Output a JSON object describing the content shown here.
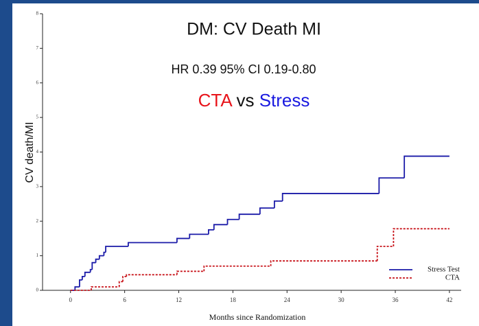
{
  "chart_data": {
    "type": "step",
    "title": "DM: CV Death MI",
    "subtitle": "HR 0.39 95% CI 0.19-0.80",
    "comparison": [
      {
        "text": "CTA",
        "color": "#e8141b"
      },
      {
        "text": "vs",
        "color": "#111111"
      },
      {
        "text": "Stress",
        "color": "#1a1ae0"
      }
    ],
    "x_label": "Months since Randomization",
    "y_label": "CV death/MI",
    "xlim": [
      -3.1,
      43.3
    ],
    "ylim": [
      0,
      8
    ],
    "xticks": [
      0,
      6,
      12,
      18,
      24,
      30,
      36,
      42
    ],
    "yticks": [
      0,
      1,
      2,
      3,
      4,
      5,
      6,
      7,
      8
    ],
    "legend": "lower right",
    "series": [
      {
        "name": "Stress Test",
        "color": "#1a1aa8",
        "dashed": false,
        "x": [
          0,
          0.5,
          1,
          1.3,
          1.6,
          2.2,
          2.4,
          2.8,
          3.2,
          3.7,
          3.9,
          6.4,
          11.8,
          13.2,
          15.3,
          15.9,
          17.4,
          18.7,
          21.0,
          22.6,
          23.5,
          34.2,
          37,
          42
        ],
        "values": [
          0,
          0.1,
          0.3,
          0.4,
          0.52,
          0.6,
          0.8,
          0.9,
          1.0,
          1.1,
          1.27,
          1.38,
          1.5,
          1.62,
          1.75,
          1.9,
          2.05,
          2.2,
          2.38,
          2.58,
          2.8,
          3.25,
          3.88,
          3.88
        ]
      },
      {
        "name": "CTA",
        "color": "#c8141b",
        "dashed": true,
        "x": [
          0,
          2.3,
          5.4,
          5.8,
          6.2,
          11.8,
          14.8,
          22.2,
          34.0,
          35.8,
          42
        ],
        "values": [
          0,
          0.1,
          0.25,
          0.4,
          0.45,
          0.55,
          0.7,
          0.85,
          1.27,
          1.78,
          1.78
        ]
      }
    ]
  }
}
